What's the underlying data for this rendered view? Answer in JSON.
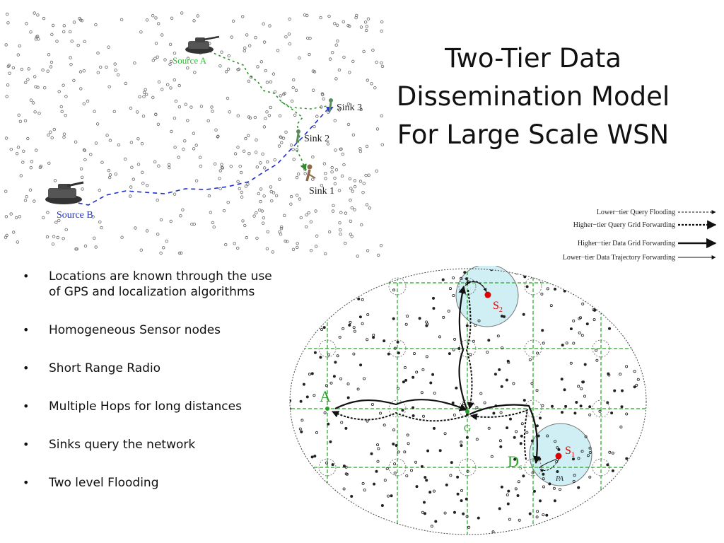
{
  "title": {
    "lines": [
      "Two-Tier Data",
      "Dissemination Model",
      "For Large Scale WSN"
    ]
  },
  "bullets": [
    "Locations are known through the use of GPS and localization algorithms",
    "Homogeneous Sensor nodes",
    "Short Range Radio",
    "Multiple Hops for long distances",
    "Sinks query the network",
    "Two level Flooding"
  ],
  "top_diagram": {
    "source_a": "Source A",
    "source_b": "Source B",
    "sinks": [
      "Sink 3",
      "Sink 2",
      "Sink 1"
    ],
    "colors": {
      "source_a_path": "#2e8b2e",
      "source_b_path": "#1f2fd0",
      "source_a_label": "#2fbf2f",
      "source_b_label": "#1f2fd0"
    }
  },
  "legend": [
    "Lower−tier Query Flooding",
    "Higher−tier Query Grid Forwarding",
    "Higher−tier Data Grid Forwarding",
    "Lower−tier Data Trajectory Forwarding"
  ],
  "grid_diagram": {
    "labels": {
      "a": "A",
      "g": "G",
      "s2": "S",
      "s2_sub": "2",
      "s1": "S",
      "s1_sub": "1",
      "d": "D",
      "d_sub": "s",
      "pa": "PA"
    },
    "colors": {
      "grid": "#2aa02a",
      "sink": "#e00000",
      "sink_area": "#cfeff4"
    }
  }
}
